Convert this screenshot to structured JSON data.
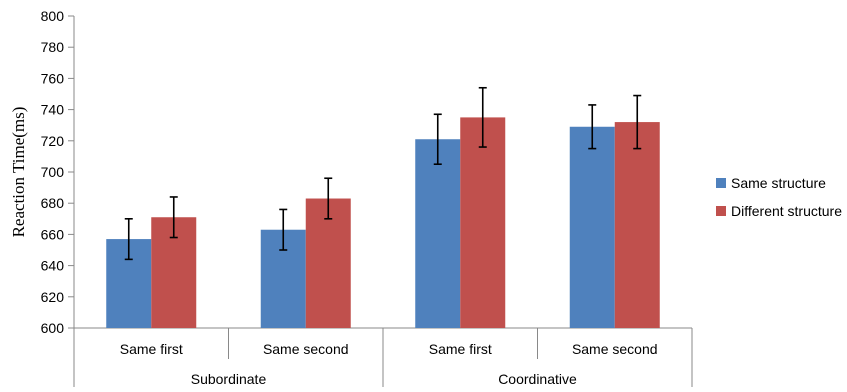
{
  "chart_data": {
    "type": "bar",
    "ylabel": "Reaction Time(ms)",
    "ylim": [
      600,
      800
    ],
    "yticks": [
      600,
      620,
      640,
      660,
      680,
      700,
      720,
      740,
      760,
      780,
      800
    ],
    "grid": false,
    "legend_position": "right",
    "groups": [
      "Subordinate",
      "Coordinative"
    ],
    "categories": [
      "Same first",
      "Same second",
      "Same first",
      "Same second"
    ],
    "category_group": [
      0,
      0,
      1,
      1
    ],
    "series": [
      {
        "name": "Same structure",
        "color": "#4F81BD",
        "values": [
          657,
          663,
          721,
          729
        ],
        "error_low": [
          644,
          650,
          705,
          715
        ],
        "error_high": [
          670,
          676,
          737,
          743
        ]
      },
      {
        "name": "Different structure",
        "color": "#C0504D",
        "values": [
          671,
          683,
          735,
          732
        ],
        "error_low": [
          658,
          670,
          716,
          715
        ],
        "error_high": [
          684,
          696,
          754,
          749
        ]
      }
    ]
  }
}
